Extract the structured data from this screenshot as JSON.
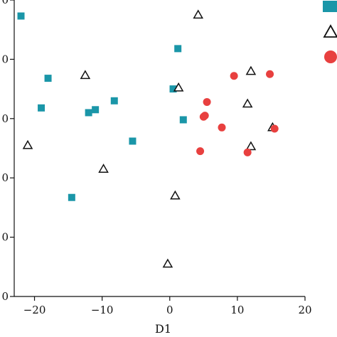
{
  "chart_data": {
    "type": "scatter",
    "title": "",
    "xlabel": "D1",
    "ylabel": "",
    "xlim": [
      -23,
      20
    ],
    "ylim": [
      -30,
      20
    ],
    "x_ticks": [
      -20,
      -10,
      0,
      10,
      20
    ],
    "x_tick_labels": [
      "−20",
      "−10",
      "0",
      "10",
      "20"
    ],
    "y_ticks": [
      -30,
      -20,
      -10,
      0,
      10,
      20
    ],
    "y_tick_labels": [
      "0",
      "0",
      "0",
      "0",
      "0",
      "0"
    ],
    "grid": false,
    "legend": "top-right (cropped)",
    "series": [
      {
        "marker": "square",
        "color": "#1a96a8",
        "points": [
          [
            -22.0,
            17.3
          ],
          [
            -18.0,
            6.8
          ],
          [
            -19.0,
            1.8
          ],
          [
            -14.5,
            -13.3
          ],
          [
            -12.0,
            1.0
          ],
          [
            -11.0,
            1.5
          ],
          [
            -8.2,
            3.0
          ],
          [
            -5.5,
            -3.8
          ],
          [
            0.5,
            5.0
          ],
          [
            1.2,
            11.8
          ],
          [
            2.0,
            -0.2
          ]
        ]
      },
      {
        "marker": "triangle-open",
        "color": "#111111",
        "points": [
          [
            -21.0,
            -4.5
          ],
          [
            -12.5,
            7.3
          ],
          [
            -9.8,
            -8.5
          ],
          [
            -0.3,
            -24.5
          ],
          [
            0.8,
            -13.0
          ],
          [
            1.3,
            5.2
          ],
          [
            4.2,
            17.5
          ],
          [
            11.5,
            2.5
          ],
          [
            12.0,
            8.0
          ],
          [
            12.0,
            -4.7
          ],
          [
            15.2,
            -1.5
          ]
        ]
      },
      {
        "marker": "circle",
        "color": "#e8403f",
        "points": [
          [
            4.5,
            -5.5
          ],
          [
            5.0,
            0.3
          ],
          [
            5.2,
            0.5
          ],
          [
            5.5,
            2.8
          ],
          [
            7.7,
            -1.5
          ],
          [
            9.5,
            7.2
          ],
          [
            11.5,
            -5.7
          ],
          [
            14.8,
            7.5
          ],
          [
            15.5,
            -1.7
          ]
        ]
      }
    ]
  }
}
